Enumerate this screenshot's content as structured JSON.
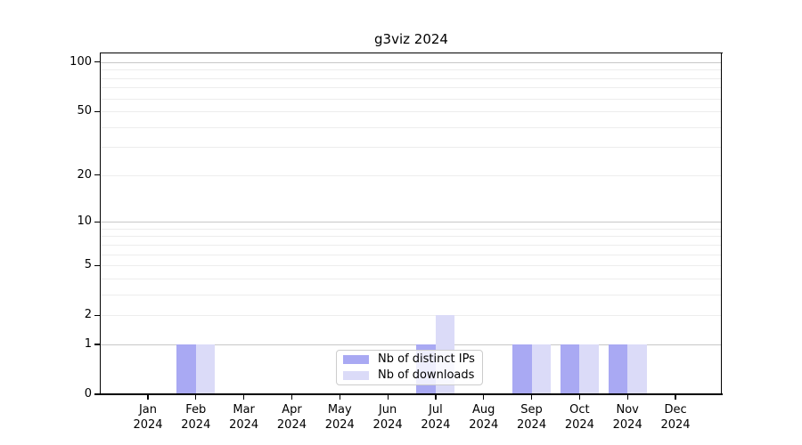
{
  "colors": {
    "distinct_ips": "#a9a9f3",
    "downloads": "#dbdbf8",
    "grid_major": "#c8c8c8",
    "grid_minor": "#ededed",
    "axis": "#000000",
    "legend_border": "#cccccc"
  },
  "legend": {
    "items": [
      {
        "label": "Nb of distinct IPs",
        "color_key": "distinct_ips"
      },
      {
        "label": "Nb of downloads",
        "color_key": "downloads"
      }
    ]
  },
  "chart_data": {
    "type": "bar",
    "title": "g3viz 2024",
    "categories": [
      "Jan 2024",
      "Feb 2024",
      "Mar 2024",
      "Apr 2024",
      "May 2024",
      "Jun 2024",
      "Jul 2024",
      "Aug 2024",
      "Sep 2024",
      "Oct 2024",
      "Nov 2024",
      "Dec 2024"
    ],
    "month_labels": [
      "Jan",
      "Feb",
      "Mar",
      "Apr",
      "May",
      "Jun",
      "Jul",
      "Aug",
      "Sep",
      "Oct",
      "Nov",
      "Dec"
    ],
    "year_label": "2024",
    "series": [
      {
        "name": "Nb of distinct IPs",
        "color_key": "distinct_ips",
        "values": [
          0,
          1,
          0,
          0,
          0,
          0,
          1,
          0,
          1,
          1,
          1,
          0
        ]
      },
      {
        "name": "Nb of downloads",
        "color_key": "downloads",
        "values": [
          0,
          1,
          0,
          0,
          0,
          0,
          2,
          0,
          1,
          1,
          1,
          0
        ]
      }
    ],
    "xlabel": "",
    "ylabel": "",
    "y_scale": "log10(1+x)",
    "y_ticks_labeled": [
      0,
      1,
      2,
      5,
      10,
      20,
      50,
      100
    ],
    "y_gridlines_major": [
      1,
      10,
      100
    ],
    "y_gridlines_minor": [
      2,
      3,
      4,
      5,
      6,
      7,
      8,
      9,
      20,
      30,
      40,
      50,
      60,
      70,
      80,
      90
    ],
    "ylim": [
      0,
      114
    ],
    "grid": "horizontal",
    "legend_position": "inside-bottom-center"
  }
}
